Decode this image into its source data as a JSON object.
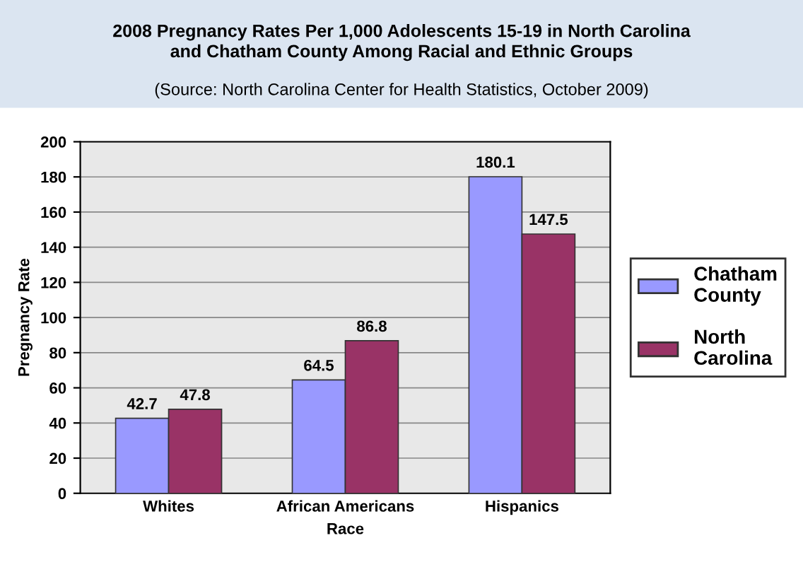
{
  "chart_data": {
    "type": "bar",
    "title": "2008 Pregnancy Rates Per 1,000 Adolescents 15-19 in North Carolina\nand Chatham County Among Racial and Ethnic Groups",
    "subtitle": "(Source: North Carolina Center for Health Statistics, October 2009)",
    "xlabel": "Race",
    "ylabel": "Pregnancy Rate",
    "categories": [
      "Whites",
      "African Americans",
      "Hispanics"
    ],
    "series": [
      {
        "name": "Chatham\nCounty",
        "color": "#9999ff",
        "values": [
          42.7,
          64.5,
          180.1
        ]
      },
      {
        "name": "North\nCarolina",
        "color": "#993366",
        "values": [
          47.8,
          86.8,
          147.5
        ]
      }
    ],
    "ylim": [
      0,
      200
    ],
    "yticks": [
      0,
      20,
      40,
      60,
      80,
      100,
      120,
      140,
      160,
      180,
      200
    ],
    "grid": "y",
    "legend": "right",
    "data_labels": true
  }
}
